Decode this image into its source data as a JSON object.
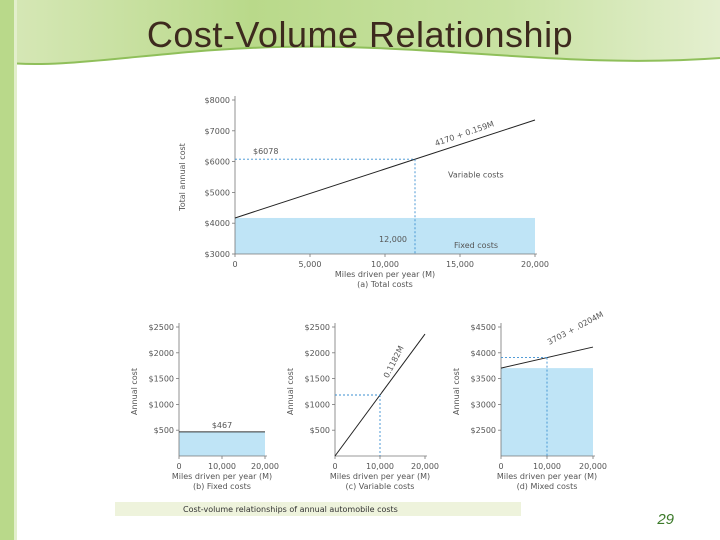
{
  "slide": {
    "title": "Cost-Volume Relationship",
    "page_number": "29",
    "caption": "Cost-volume relationships of annual automobile costs",
    "colors": {
      "background": "#ffffff",
      "green_band": "#b9d98a",
      "green_dark": "#7fb04a",
      "fill": "#bfe4f6",
      "guide": "#3b8fd0",
      "text": "#555555"
    }
  },
  "chart_data": [
    {
      "type": "line",
      "id": "total",
      "caption": "(a) Total costs",
      "xlabel": "Miles driven per year (M)",
      "ylabel": "Total annual cost",
      "xlim": [
        0,
        20000
      ],
      "ylim": [
        3000,
        8000
      ],
      "x_ticks": [
        0,
        5000,
        10000,
        15000,
        20000
      ],
      "x_tick_labels": [
        "0",
        "5,000",
        "10,000",
        "15,000",
        "20,000"
      ],
      "y_ticks": [
        3000,
        4000,
        5000,
        6000,
        7000,
        8000
      ],
      "y_tick_labels": [
        "$3000",
        "$4000",
        "$5000",
        "$6000",
        "$7000",
        "$8000"
      ],
      "series": [
        {
          "x": [
            0,
            20000
          ],
          "y": [
            4170,
            7350
          ]
        }
      ],
      "fixed_level": 4170,
      "line_label": "4170 + 0.159M",
      "marker": {
        "x": 12000,
        "y": 6078,
        "x_label": "12,000",
        "y_label": "$6078"
      },
      "annotations": [
        "Variable costs",
        "Fixed costs"
      ]
    },
    {
      "type": "line",
      "id": "fixed",
      "caption": "(b) Fixed costs",
      "xlabel": "Miles driven per year (M)",
      "ylabel": "Annual cost",
      "xlim": [
        0,
        20000
      ],
      "ylim": [
        0,
        2500
      ],
      "x_ticks": [
        0,
        10000,
        20000
      ],
      "x_tick_labels": [
        "0",
        "10,000",
        "20,000"
      ],
      "y_ticks": [
        500,
        1000,
        1500,
        2000,
        2500
      ],
      "y_tick_labels": [
        "$500",
        "$1000",
        "$1500",
        "$2000",
        "$2500"
      ],
      "fixed_level": 467,
      "level_label": "$467"
    },
    {
      "type": "line",
      "id": "variable",
      "caption": "(c) Variable costs",
      "xlabel": "Miles driven per year (M)",
      "ylabel": "Annual cost",
      "xlim": [
        0,
        20000
      ],
      "ylim": [
        0,
        2500
      ],
      "x_ticks": [
        0,
        10000,
        20000
      ],
      "x_tick_labels": [
        "0",
        "10,000",
        "20,000"
      ],
      "y_ticks": [
        500,
        1000,
        1500,
        2000,
        2500
      ],
      "y_tick_labels": [
        "$500",
        "$1000",
        "$1500",
        "$2000",
        "$2500"
      ],
      "series": [
        {
          "x": [
            0,
            20000
          ],
          "y": [
            0,
            2364
          ]
        }
      ],
      "line_label": "0.1182M",
      "guide": {
        "x": 10000,
        "y": 1182
      }
    },
    {
      "type": "line",
      "id": "mixed",
      "caption": "(d) Mixed costs",
      "xlabel": "Miles driven per year (M)",
      "ylabel": "Annual cost",
      "xlim": [
        0,
        20000
      ],
      "ylim": [
        2000,
        4500
      ],
      "x_ticks": [
        0,
        10000,
        20000
      ],
      "x_tick_labels": [
        "0",
        "10,000",
        "20,000"
      ],
      "y_ticks": [
        2500,
        3000,
        3500,
        4000,
        4500
      ],
      "y_tick_labels": [
        "$2500",
        "$3000",
        "$3500",
        "$4000",
        "$4500"
      ],
      "series": [
        {
          "x": [
            0,
            20000
          ],
          "y": [
            3703,
            4111
          ]
        }
      ],
      "fixed_level": 3703,
      "line_label": "3703 + .0204M",
      "guide": {
        "x": 10000,
        "y": 3907
      }
    }
  ]
}
